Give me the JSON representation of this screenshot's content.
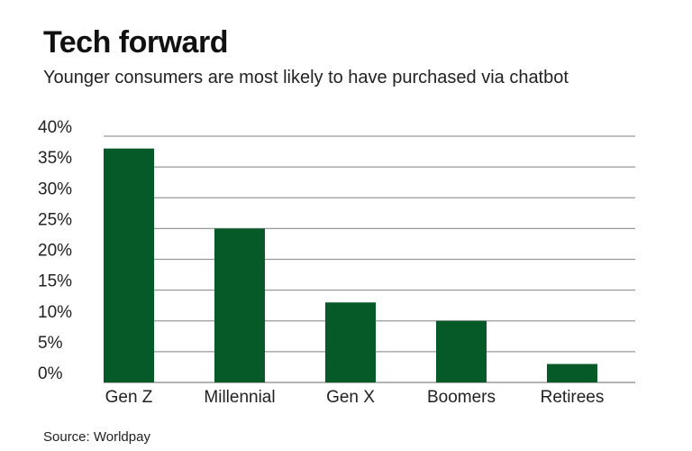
{
  "title": "Tech forward",
  "subtitle": "Younger consumers are most likely to have purchased via chatbot",
  "source": "Source: Worldpay",
  "chart_data": {
    "type": "bar",
    "categories": [
      "Gen Z",
      "Millennial",
      "Gen X",
      "Boomers",
      "Retirees"
    ],
    "values": [
      38,
      25,
      13,
      10,
      3
    ],
    "ylim": [
      0,
      40
    ],
    "yticks": [
      0,
      5,
      10,
      15,
      20,
      25,
      30,
      35,
      40
    ],
    "ytick_labels": [
      "0%",
      "5%",
      "10%",
      "15%",
      "20%",
      "25%",
      "30%",
      "35%",
      "40%"
    ],
    "grid": true,
    "bar_color": "#055a28",
    "xlabel": "",
    "ylabel": ""
  }
}
